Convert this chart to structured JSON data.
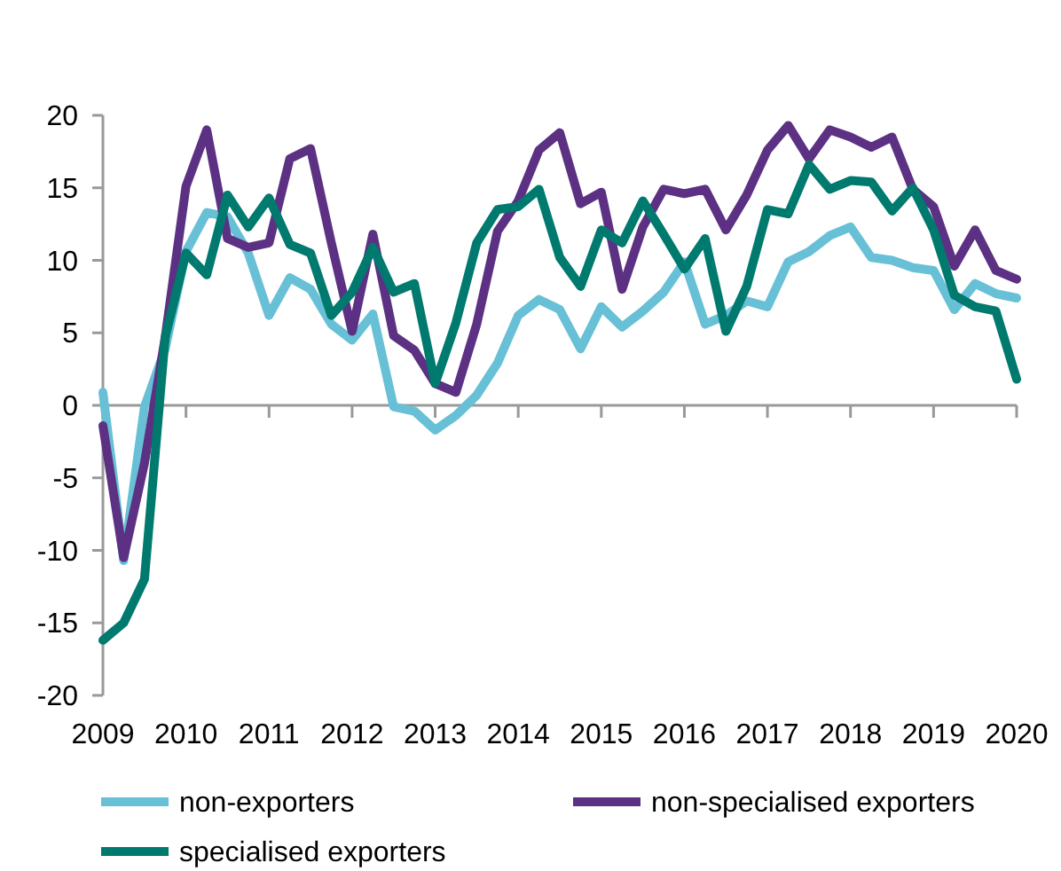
{
  "chart_data": {
    "type": "line",
    "x": [
      2009,
      2009.25,
      2009.5,
      2009.75,
      2010,
      2010.25,
      2010.5,
      2010.75,
      2011,
      2011.25,
      2011.5,
      2011.75,
      2012,
      2012.25,
      2012.5,
      2012.75,
      2013,
      2013.25,
      2013.5,
      2013.75,
      2014,
      2014.25,
      2014.5,
      2014.75,
      2015,
      2015.25,
      2015.5,
      2015.75,
      2016,
      2016.25,
      2016.5,
      2016.75,
      2017,
      2017.25,
      2017.5,
      2017.75,
      2018,
      2018.25,
      2018.5,
      2018.75,
      2019,
      2019.25,
      2019.5,
      2019.75,
      2020
    ],
    "series": [
      {
        "name": "non-exporters",
        "color": "#67c0d6",
        "values": [
          0.9,
          -10.7,
          -0.1,
          3.9,
          10.6,
          13.3,
          13,
          10.5,
          6.2,
          8.8,
          8,
          5.6,
          4.5,
          6.3,
          -0.1,
          -0.4,
          -1.7,
          -0.7,
          0.7,
          2.9,
          6.2,
          7.3,
          6.6,
          3.9,
          6.8,
          5.4,
          6.5,
          7.8,
          9.9,
          5.6,
          6.2,
          7.2,
          6.8,
          9.9,
          10.6,
          11.7,
          12.3,
          10.2,
          10,
          9.5,
          9.3,
          6.6,
          8.4,
          7.7,
          7.4
        ]
      },
      {
        "name": "non-specialised exporters",
        "color": "#5c3183",
        "values": [
          -1.4,
          -10.5,
          -4,
          4.7,
          15.1,
          19,
          11.5,
          10.9,
          11.2,
          17,
          17.7,
          11.2,
          5.1,
          11.8,
          4.8,
          3.8,
          1.5,
          0.9,
          5.6,
          12,
          14.1,
          17.6,
          18.8,
          13.9,
          14.7,
          8,
          12.3,
          14.9,
          14.6,
          14.9,
          12.1,
          14.5,
          17.6,
          19.3,
          17,
          19,
          18.5,
          17.8,
          18.5,
          14.9,
          13.7,
          9.6,
          12.1,
          9.3,
          8.7
        ]
      },
      {
        "name": "specialised exporters",
        "color": "#007a6e",
        "values": [
          -16.2,
          -15,
          -12,
          4.7,
          10.5,
          9,
          14.5,
          12.3,
          14.3,
          11.1,
          10.5,
          6.2,
          7.8,
          10.9,
          7.8,
          8.4,
          1.5,
          5.7,
          11.2,
          13.5,
          13.7,
          14.9,
          10.2,
          8.2,
          12.1,
          11.2,
          14.1,
          11.8,
          9.4,
          11.5,
          5.1,
          8.2,
          13.5,
          13.2,
          16.6,
          14.9,
          15.5,
          15.4,
          13.4,
          15,
          12.1,
          7.6,
          6.8,
          6.5,
          1.8
        ]
      }
    ],
    "xlim": [
      2009,
      2020
    ],
    "xticks": [
      2009,
      2010,
      2011,
      2012,
      2013,
      2014,
      2015,
      2016,
      2017,
      2018,
      2019,
      2020
    ],
    "ylim": [
      -20,
      20
    ],
    "yticks": [
      -20,
      -15,
      -10,
      -5,
      0,
      5,
      10,
      15,
      20
    ],
    "legend": "bottom",
    "marker": "none",
    "line_style": "solid"
  }
}
